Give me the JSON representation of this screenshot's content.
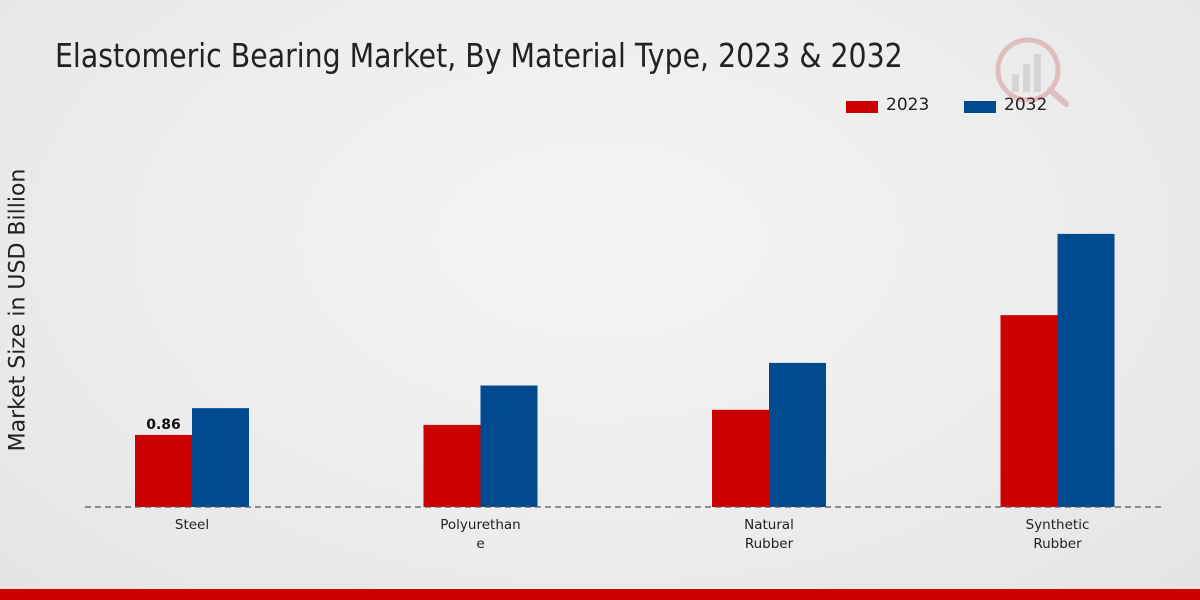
{
  "chart_data": {
    "type": "bar",
    "title": "Elastomeric Bearing Market, By Material Type, 2023 & 2032",
    "ylabel": "Market Size in USD Billion",
    "xlabel": "",
    "categories": [
      "Steel",
      "Polyurethane",
      "Natural Rubber",
      "Synthetic Rubber"
    ],
    "category_lines": [
      [
        "Steel"
      ],
      [
        "Polyurethan",
        "e"
      ],
      [
        "Natural",
        "Rubber"
      ],
      [
        "Synthetic",
        "Rubber"
      ]
    ],
    "series": [
      {
        "name": "2023",
        "color": "#cc0000",
        "values": [
          0.86,
          0.98,
          1.16,
          2.29
        ]
      },
      {
        "name": "2032",
        "color": "#004a8f",
        "values": [
          1.18,
          1.45,
          1.72,
          3.26
        ]
      }
    ],
    "data_labels": [
      {
        "series": 0,
        "index": 0,
        "text": "0.86"
      }
    ],
    "ylim": [
      0,
      4.5
    ],
    "grid": false,
    "legend_position": "top-right"
  },
  "colors": {
    "accent_bar": "#cc0000",
    "baseline": "#555555"
  },
  "watermark": {
    "icon": "bar-chart-logo-icon"
  }
}
